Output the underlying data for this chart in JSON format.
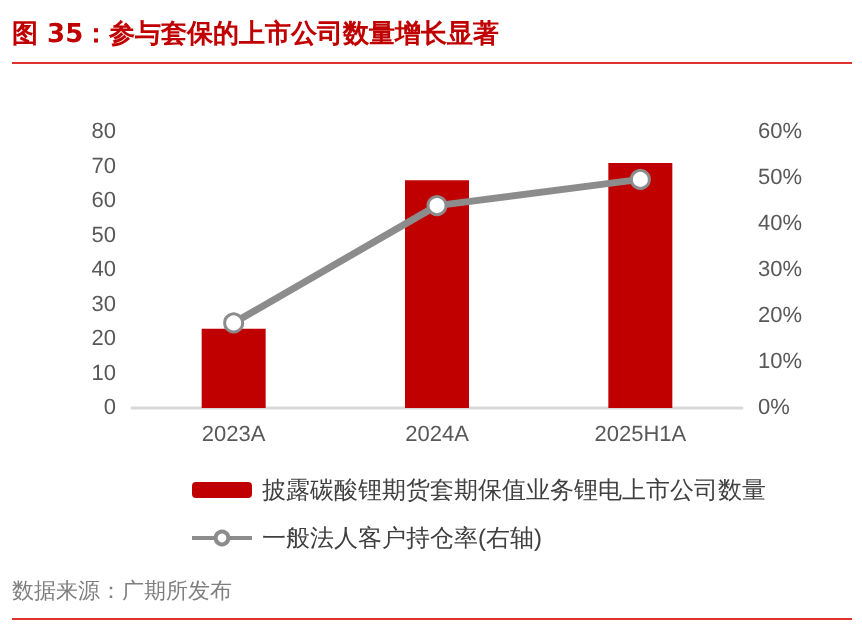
{
  "chart_data": {
    "type": "bar",
    "title": "图 35：参与套保的上市公司数量增长显著",
    "categories": [
      "2023A",
      "2024A",
      "2025H1A"
    ],
    "series": [
      {
        "name": "披露碳酸锂期货套期保值业务锂电上市公司数量",
        "color": "#c00000",
        "values": [
          23,
          66,
          71
        ]
      },
      {
        "name": "一般法人客户持仓率(右轴)",
        "type": "line",
        "axis": "y2",
        "color": "#8c8c8c",
        "values": [
          18.5,
          44,
          49.7
        ]
      }
    ],
    "ylim": [
      0,
      80
    ],
    "yticks": [
      0,
      10,
      20,
      30,
      40,
      50,
      60,
      70,
      80
    ],
    "y2lim": [
      0,
      60
    ],
    "y2ticks": [
      {
        "value": 0,
        "label": "0%"
      },
      {
        "value": 10,
        "label": "10%"
      },
      {
        "value": 20,
        "label": "20%"
      },
      {
        "value": 30,
        "label": "30%"
      },
      {
        "value": 40,
        "label": "40%"
      },
      {
        "value": 50,
        "label": "50%"
      },
      {
        "value": 60,
        "label": "60%"
      }
    ],
    "grid": false,
    "legend": "bottom",
    "marker": "circle",
    "line_style": "solid",
    "annotations": [
      "数据来源：广期所发布"
    ]
  }
}
